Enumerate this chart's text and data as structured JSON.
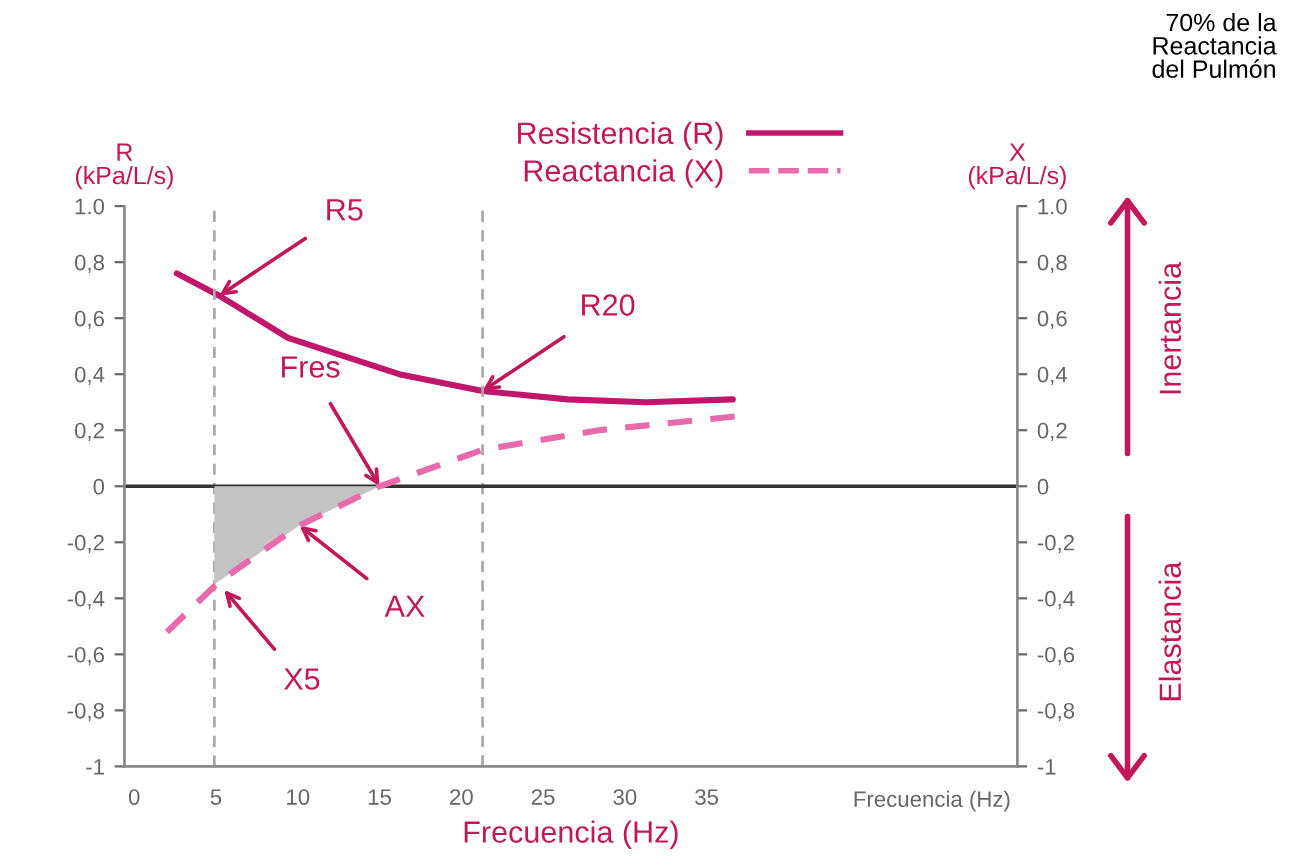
{
  "chart_data": {
    "type": "line",
    "xlabel": "Frecuencia (Hz)",
    "ylabel": "R\n(kPa/L/s)",
    "y2label": "X\n(kPa/L/s)",
    "xlim": [
      -0.6,
      54
    ],
    "xticks": [
      0,
      5,
      10,
      15,
      20,
      25,
      30,
      35
    ],
    "ylim": [
      -1,
      1
    ],
    "yticks": [
      {
        "value": -1,
        "label": "-1"
      },
      {
        "value": -0.8,
        "label": "-0,8"
      },
      {
        "value": -0.6,
        "label": "-0,6"
      },
      {
        "value": -0.4,
        "label": "-0,4"
      },
      {
        "value": -0.2,
        "label": "-0,2"
      },
      0,
      {
        "value": 0.2,
        "label": "0,2"
      },
      {
        "value": 0.4,
        "label": "0,4"
      },
      {
        "value": 0.6,
        "label": "0,6"
      },
      {
        "value": 0.8,
        "label": "0,8"
      },
      {
        "value": 1,
        "label": "1.0"
      }
    ],
    "y2lim": [
      -1,
      1
    ],
    "y2ticks": [
      {
        "value": -1,
        "label": "-1"
      },
      {
        "value": -0.8,
        "label": "-0,8"
      },
      {
        "value": -0.6,
        "label": "-0,6"
      },
      {
        "value": -0.4,
        "label": "-0,4"
      },
      {
        "value": -0.2,
        "label": "-0,2"
      },
      0,
      {
        "value": 0.2,
        "label": "0,2"
      },
      {
        "value": 0.4,
        "label": "0,4"
      },
      {
        "value": 0.6,
        "label": "0,6"
      },
      {
        "value": 0.8,
        "label": "0,8"
      },
      {
        "value": 1,
        "label": "1.0"
      }
    ],
    "series": [
      {
        "name": "Resistencia (R)",
        "color": "#c0176a",
        "line_style": "solid",
        "x": [
          2.6,
          5.2,
          9.4,
          16.2,
          21.3,
          26.5,
          31.3,
          36.6
        ],
        "values": [
          0.76,
          0.68,
          0.53,
          0.4,
          0.34,
          0.31,
          0.3,
          0.31
        ]
      },
      {
        "name": "Reactancia (X)",
        "color": "#e96aab",
        "line_style": "dashed",
        "axis": "y2",
        "x": [
          2.0,
          5.2,
          10.1,
          15.0,
          21.3,
          28.4,
          36.9
        ],
        "values": [
          -0.52,
          -0.34,
          -0.14,
          0,
          0.13,
          0.2,
          0.25
        ]
      },
      {
        "type": "area",
        "color": "#c4c4c4",
        "axis": "y2",
        "x": [
          4.9,
          10.1,
          15.0
        ],
        "values": [
          -0.35,
          -0.14,
          0
        ]
      }
    ],
    "ref_lines": [
      {
        "axis": "x",
        "value": 4.9,
        "color": "#aaaaaa",
        "line_style": "dashed"
      },
      {
        "axis": "x",
        "value": 21.3,
        "color": "#aaaaaa",
        "line_style": "dashed"
      },
      {
        "axis": "y",
        "value": 0,
        "color": "#333333",
        "line_style": "solid"
      }
    ],
    "annotations": [
      {
        "text": "R5",
        "x": 5.2,
        "y": 0.68
      },
      {
        "text": "R20",
        "x": 21.3,
        "y": 0.34
      },
      {
        "text": "Fres",
        "x": 15.0,
        "y": 0
      },
      {
        "text": "AX",
        "x": 10.1,
        "y": -0.14
      },
      {
        "text": "X5",
        "x": 5.5,
        "y": -0.37
      },
      "70% de la\nReactancia\ndel Pulmón",
      "Inertancia",
      "Elastancia",
      "Frecuencia (Hz)"
    ],
    "legend": "top",
    "grid": false
  }
}
